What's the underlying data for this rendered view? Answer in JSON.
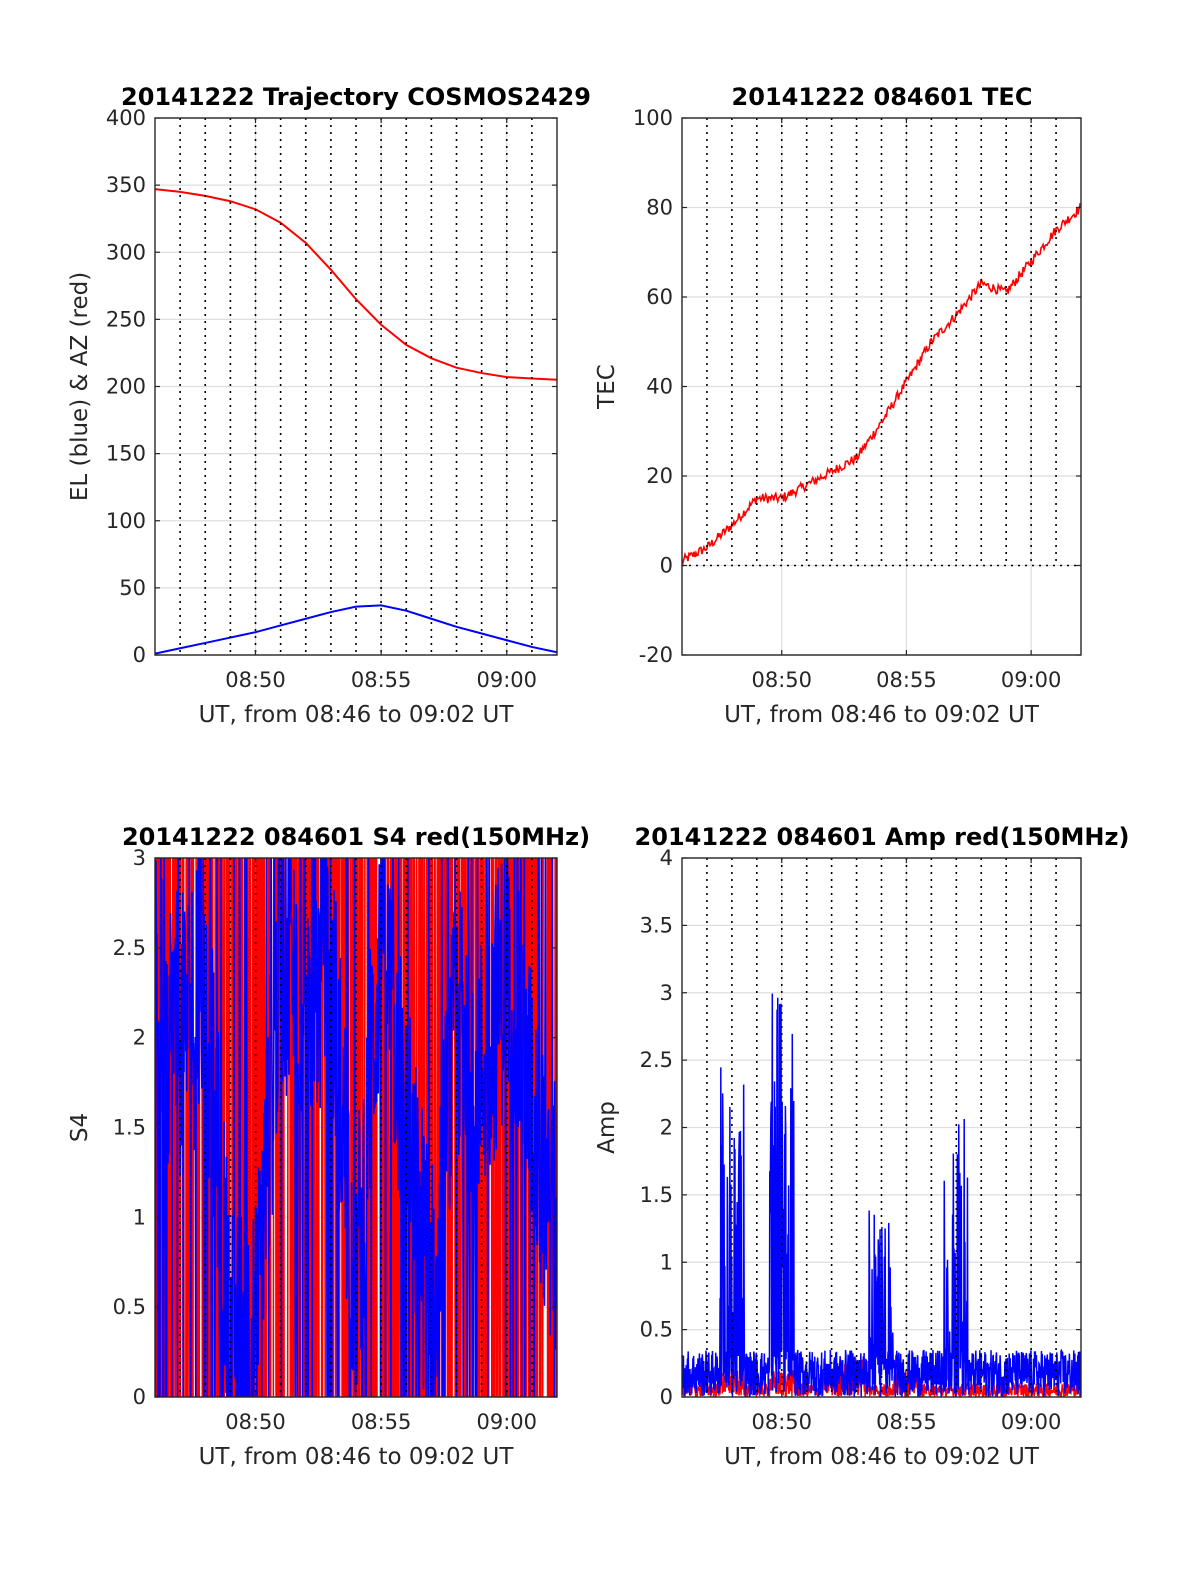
{
  "colors": {
    "red": "#ff0000",
    "blue": "#0000ff",
    "grid": "#dedede",
    "axis": "#262626"
  },
  "chart_data": [
    {
      "type": "line",
      "title": "20141222 Trajectory COSMOS2429",
      "xlabel": "UT, from 08:46 to 09:02 UT",
      "ylabel": "EL (blue) & AZ (red)",
      "xlim": [
        "08:46",
        "09:02"
      ],
      "xticks": [
        "08:50",
        "08:55",
        "09:00"
      ],
      "ylim": [
        0,
        400
      ],
      "yticks": [
        "0",
        "50",
        "100",
        "150",
        "200",
        "250",
        "300",
        "350",
        "400"
      ],
      "grid": true,
      "minute_lines": true,
      "series": [
        {
          "color": "red",
          "x": [
            "08:46",
            "08:47",
            "08:48",
            "08:49",
            "08:50",
            "08:51",
            "08:52",
            "08:53",
            "08:54",
            "08:55",
            "08:56",
            "08:57",
            "08:58",
            "08:59",
            "09:00",
            "09:01",
            "09:02"
          ],
          "values": [
            347,
            345,
            342,
            338,
            332,
            322,
            307,
            287,
            265,
            246,
            231,
            221,
            214,
            210,
            207,
            206,
            205
          ]
        },
        {
          "color": "blue",
          "x": [
            "08:46",
            "08:47",
            "08:48",
            "08:49",
            "08:50",
            "08:51",
            "08:52",
            "08:53",
            "08:54",
            "08:55",
            "08:56",
            "08:57",
            "08:58",
            "08:59",
            "09:00",
            "09:01",
            "09:02"
          ],
          "values": [
            1,
            5,
            9,
            13,
            17,
            22,
            27,
            32,
            36,
            37,
            33,
            27,
            21,
            16,
            11,
            6,
            2
          ]
        }
      ]
    },
    {
      "type": "line",
      "title": "20141222 084601 TEC",
      "xlabel": "UT, from 08:46 to 09:02 UT",
      "ylabel": "TEC",
      "xlim": [
        "08:46",
        "09:02"
      ],
      "xticks": [
        "08:50",
        "08:55",
        "09:00"
      ],
      "ylim": [
        -20,
        100
      ],
      "yticks": [
        "-20",
        "0",
        "20",
        "40",
        "60",
        "80",
        "100"
      ],
      "grid": true,
      "minute_lines": true,
      "series": [
        {
          "color": "red",
          "x": [
            "08:46",
            "08:47",
            "08:48",
            "08:49",
            "08:50",
            "08:51",
            "08:52",
            "08:53",
            "08:54",
            "08:55",
            "08:56",
            "08:57",
            "08:58",
            "08:59",
            "09:00",
            "09:01",
            "09:02"
          ],
          "values": [
            1,
            4,
            9,
            15,
            15,
            18,
            21,
            24,
            32,
            41,
            50,
            56,
            63,
            61,
            68,
            75,
            80
          ]
        }
      ]
    },
    {
      "type": "line",
      "title": "20141222 084601 S4 red(150MHz)",
      "xlabel": "UT, from 08:46 to 09:02 UT",
      "ylabel": "S4",
      "xlim": [
        "08:46",
        "09:02"
      ],
      "xticks": [
        "08:50",
        "08:55",
        "09:00"
      ],
      "ylim": [
        0,
        3
      ],
      "yticks": [
        "0",
        "0.5",
        "1",
        "1.5",
        "2",
        "2.5",
        "3"
      ],
      "grid": true,
      "minute_lines": true,
      "series": [
        {
          "color": "red",
          "description_values": "saturated fluctuations between 0 and 3 across the full interval"
        },
        {
          "color": "blue",
          "x": [
            "08:46",
            "08:47",
            "08:48",
            "08:49",
            "08:50",
            "08:51",
            "08:52",
            "08:53",
            "08:54",
            "08:55",
            "08:56",
            "08:57",
            "08:58",
            "08:59",
            "09:00",
            "09:01",
            "09:02"
          ],
          "values": [
            2.2,
            2.0,
            2.3,
            0.3,
            0.3,
            2.5,
            2.2,
            2.4,
            0.6,
            2.6,
            1.5,
            0.5,
            2.1,
            1.8,
            2.4,
            1.6,
            0.9
          ]
        }
      ]
    },
    {
      "type": "line",
      "title": "20141222 084601 Amp red(150MHz)",
      "xlabel": "UT, from 08:46 to 09:02 UT",
      "ylabel": "Amp",
      "xlim": [
        "08:46",
        "09:02"
      ],
      "xticks": [
        "08:50",
        "08:55",
        "09:00"
      ],
      "ylim": [
        0,
        4
      ],
      "yticks": [
        "0",
        "0.5",
        "1",
        "1.5",
        "2",
        "2.5",
        "3",
        "3.5",
        "4"
      ],
      "grid": true,
      "minute_lines": true,
      "series": [
        {
          "color": "red",
          "x": [
            "08:46",
            "08:47",
            "08:48",
            "08:49",
            "08:50",
            "08:51",
            "08:52",
            "08:53",
            "08:54",
            "08:55",
            "08:56",
            "08:57",
            "08:58",
            "08:59",
            "09:00",
            "09:01",
            "09:02"
          ],
          "values": [
            0.2,
            0.1,
            0.2,
            0.1,
            0.2,
            0.1,
            0.2,
            0.3,
            0.1,
            0.2,
            0.1,
            0.1,
            0.1,
            0.1,
            0.1,
            0.1,
            0.1
          ]
        },
        {
          "color": "blue",
          "x": [
            "08:46",
            "08:47",
            "08:48",
            "08:49",
            "08:50",
            "08:51",
            "08:52",
            "08:53",
            "08:54",
            "08:55",
            "08:56",
            "08:57",
            "08:58",
            "08:59",
            "09:00",
            "09:01",
            "09:02"
          ],
          "values": [
            0.3,
            0.4,
            2.55,
            0.3,
            3.0,
            0.4,
            0.3,
            0.4,
            1.4,
            0.5,
            0.4,
            2.1,
            0.5,
            0.4,
            0.4,
            0.5,
            0.8
          ]
        }
      ]
    }
  ]
}
